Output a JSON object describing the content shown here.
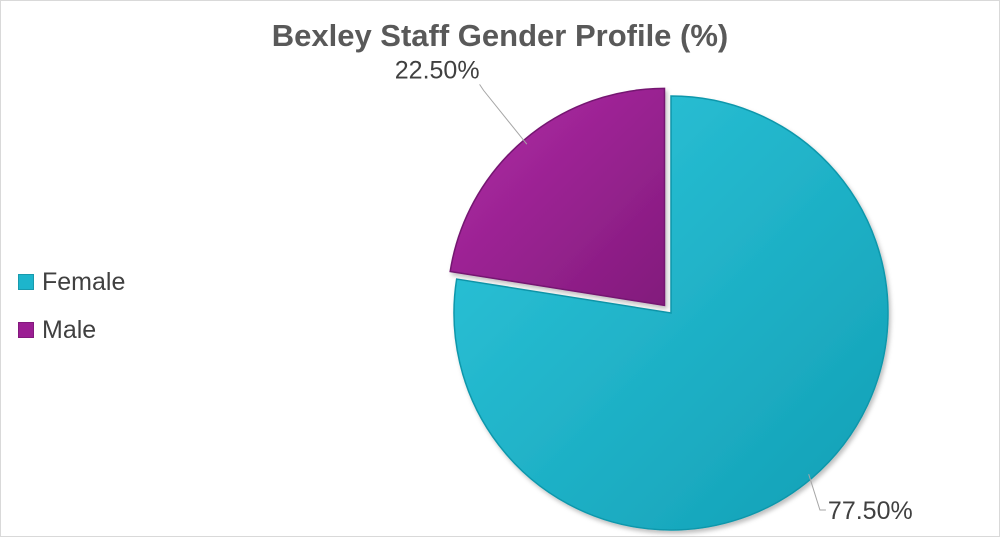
{
  "chart_data": {
    "type": "pie",
    "title": "Bexley Staff Gender Profile (%)",
    "categories": [
      "Female",
      "Male"
    ],
    "values": [
      77.5,
      22.5
    ],
    "data_labels": [
      "77.50%",
      "22.50%"
    ],
    "colors": [
      "#1db5cc",
      "#9b1e93"
    ],
    "exploded_slice": "Male",
    "legend_position": "left"
  }
}
